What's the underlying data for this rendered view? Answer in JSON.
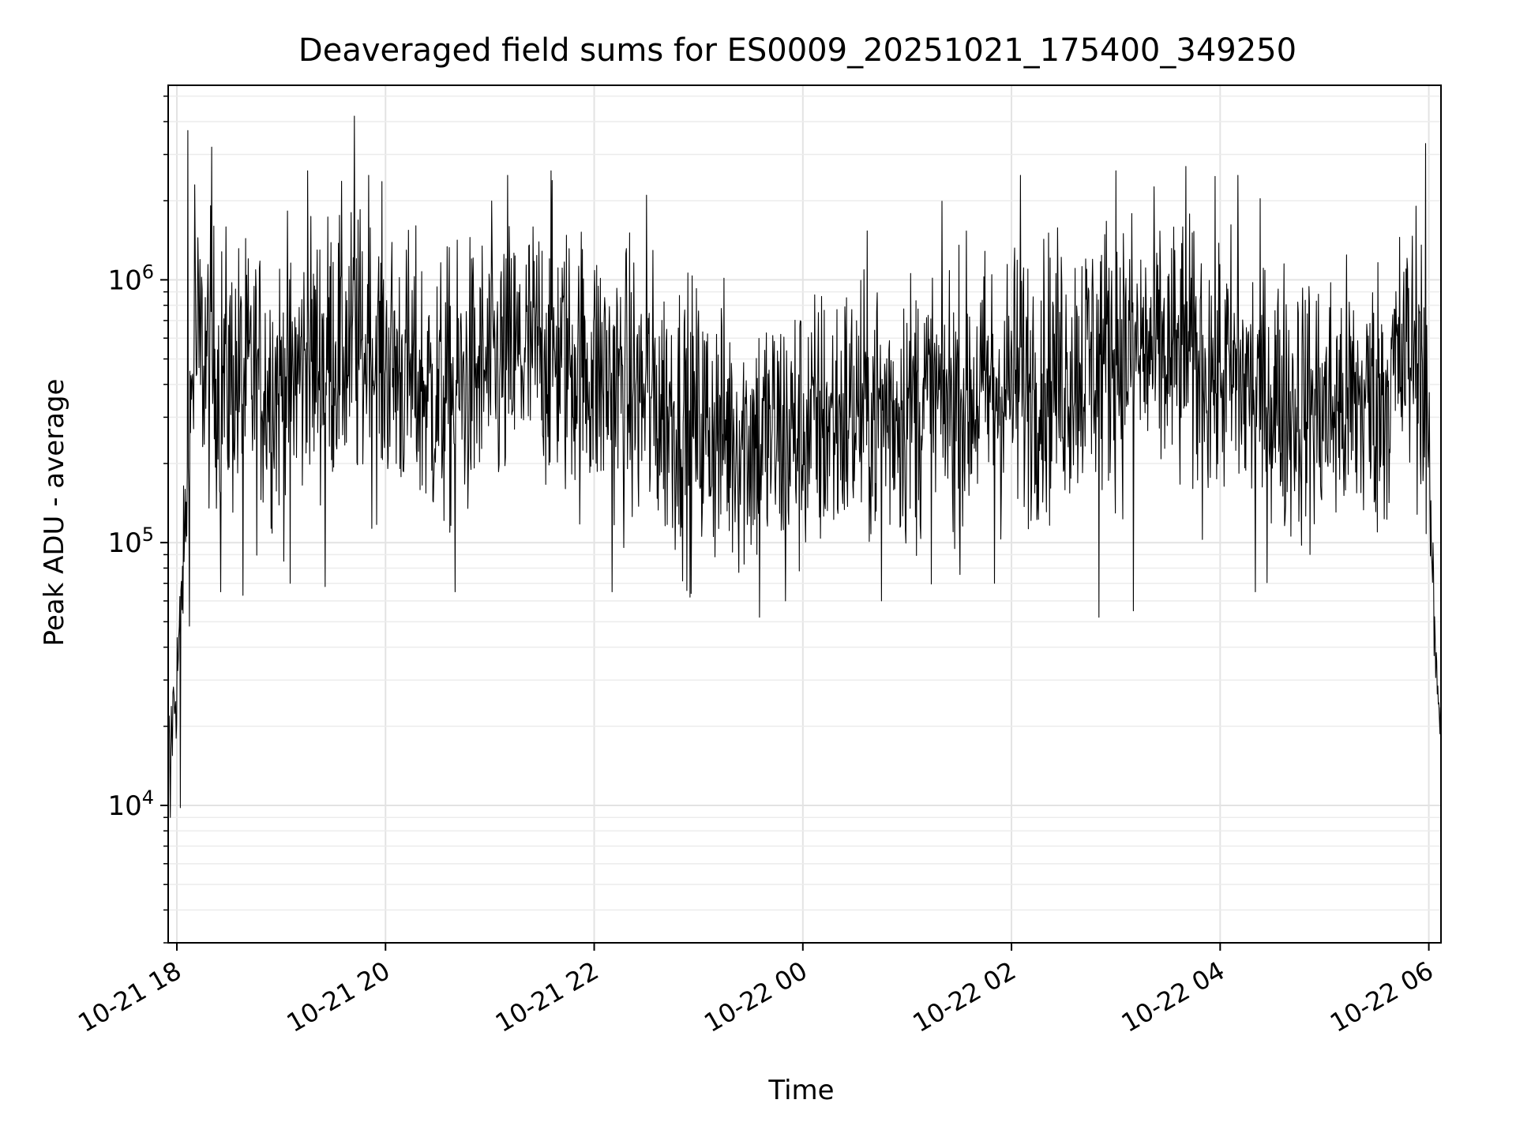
{
  "chart_data": {
    "type": "line",
    "title": "Deaveraged field sums for ES0009_20251021_175400_349250",
    "xlabel": "Time",
    "ylabel": "Peak ADU - average",
    "yscale": "log",
    "ylim": [
      3000,
      5500000
    ],
    "xlim": [
      "2025-10-21 17:55",
      "2025-10-22 06:07"
    ],
    "grid": true,
    "legend": "none",
    "line_color": "#000000",
    "x_tick_labels": [
      "10-21 18",
      "10-21 20",
      "10-21 22",
      "10-22 00",
      "10-22 02",
      "10-22 04",
      "10-22 06"
    ],
    "y_tick_labels": [
      {
        "base": "10",
        "exp": "4"
      },
      {
        "base": "10",
        "exp": "5"
      },
      {
        "base": "10",
        "exp": "6"
      }
    ],
    "series": [
      {
        "x_start": "2025-10-21 17:55",
        "x_end": "2025-10-22 06:07",
        "envelope": [
          {
            "x": "2025-10-21 17:55",
            "y": 15000
          },
          {
            "x": "2025-10-21 18:00",
            "y": 30000
          },
          {
            "x": "2025-10-21 18:05",
            "y": 120000
          },
          {
            "x": "2025-10-21 18:10",
            "y": 550000
          },
          {
            "x": "2025-10-21 18:30",
            "y": 420000
          },
          {
            "x": "2025-10-21 19:00",
            "y": 400000
          },
          {
            "x": "2025-10-21 19:30",
            "y": 550000
          },
          {
            "x": "2025-10-21 20:00",
            "y": 500000
          },
          {
            "x": "2025-10-21 20:30",
            "y": 350000
          },
          {
            "x": "2025-10-21 21:00",
            "y": 450000
          },
          {
            "x": "2025-10-21 21:30",
            "y": 550000
          },
          {
            "x": "2025-10-21 22:00",
            "y": 450000
          },
          {
            "x": "2025-10-21 22:30",
            "y": 350000
          },
          {
            "x": "2025-10-21 23:00",
            "y": 280000
          },
          {
            "x": "2025-10-21 23:30",
            "y": 250000
          },
          {
            "x": "2025-10-22 00:00",
            "y": 260000
          },
          {
            "x": "2025-10-22 00:30",
            "y": 320000
          },
          {
            "x": "2025-10-22 01:00",
            "y": 330000
          },
          {
            "x": "2025-10-22 01:30",
            "y": 350000
          },
          {
            "x": "2025-10-22 02:00",
            "y": 400000
          },
          {
            "x": "2025-10-22 02:30",
            "y": 450000
          },
          {
            "x": "2025-10-22 03:00",
            "y": 550000
          },
          {
            "x": "2025-10-22 03:30",
            "y": 500000
          },
          {
            "x": "2025-10-22 04:00",
            "y": 450000
          },
          {
            "x": "2025-10-22 04:30",
            "y": 350000
          },
          {
            "x": "2025-10-22 05:00",
            "y": 320000
          },
          {
            "x": "2025-10-22 05:30",
            "y": 350000
          },
          {
            "x": "2025-10-22 05:55",
            "y": 600000
          },
          {
            "x": "2025-10-22 06:00",
            "y": 200000
          },
          {
            "x": "2025-10-22 06:03",
            "y": 50000
          },
          {
            "x": "2025-10-22 06:07",
            "y": 20000
          }
        ],
        "spikes": [
          {
            "x": "2025-10-21 17:56",
            "y": 9000
          },
          {
            "x": "2025-10-21 18:02",
            "y": 9800
          },
          {
            "x": "2025-10-21 18:06",
            "y": 3700000
          },
          {
            "x": "2025-10-21 18:10",
            "y": 2300000
          },
          {
            "x": "2025-10-21 18:20",
            "y": 3200000
          },
          {
            "x": "2025-10-21 18:25",
            "y": 65000
          },
          {
            "x": "2025-10-21 18:38",
            "y": 63000
          },
          {
            "x": "2025-10-21 19:05",
            "y": 70000
          },
          {
            "x": "2025-10-21 19:15",
            "y": 2600000
          },
          {
            "x": "2025-10-21 19:25",
            "y": 68000
          },
          {
            "x": "2025-10-21 19:42",
            "y": 4200000
          },
          {
            "x": "2025-10-21 19:50",
            "y": 2500000
          },
          {
            "x": "2025-10-21 20:40",
            "y": 65000
          },
          {
            "x": "2025-10-21 21:10",
            "y": 2500000
          },
          {
            "x": "2025-10-21 21:35",
            "y": 2600000
          },
          {
            "x": "2025-10-21 22:10",
            "y": 65000
          },
          {
            "x": "2025-10-21 22:30",
            "y": 2100000
          },
          {
            "x": "2025-10-21 22:55",
            "y": 62000
          },
          {
            "x": "2025-10-21 23:35",
            "y": 52000
          },
          {
            "x": "2025-10-21 23:50",
            "y": 60000
          },
          {
            "x": "2025-10-22 00:45",
            "y": 60000
          },
          {
            "x": "2025-10-22 01:50",
            "y": 70000
          },
          {
            "x": "2025-10-22 02:05",
            "y": 2500000
          },
          {
            "x": "2025-10-22 02:50",
            "y": 52000
          },
          {
            "x": "2025-10-22 03:00",
            "y": 2600000
          },
          {
            "x": "2025-10-22 03:10",
            "y": 55000
          },
          {
            "x": "2025-10-22 03:40",
            "y": 2700000
          },
          {
            "x": "2025-10-22 04:10",
            "y": 2500000
          },
          {
            "x": "2025-10-22 04:20",
            "y": 65000
          },
          {
            "x": "2025-10-22 05:58",
            "y": 3300000
          }
        ]
      }
    ]
  }
}
